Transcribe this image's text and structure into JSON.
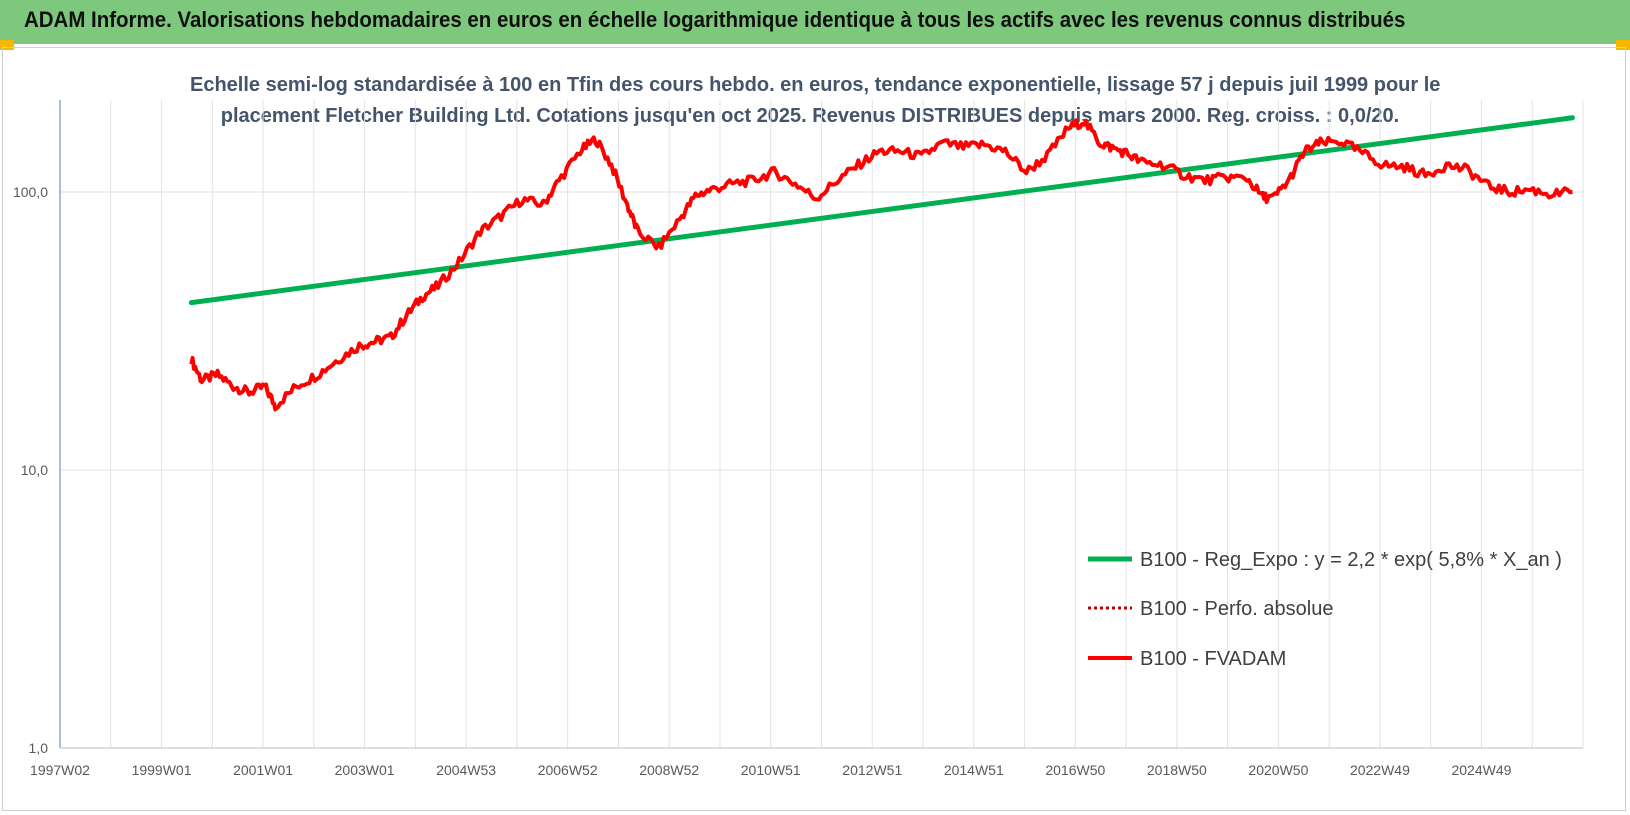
{
  "header": {
    "title": "ADAM Informe. Valorisations hebdomadaires en euros en échelle logarithmique identique à tous les actifs avec les revenus connus distribués"
  },
  "colors": {
    "header_bg": "#7dc87d",
    "corner_accent": "#f5b800",
    "trend": "#00b050",
    "fvadam": "#ff0000",
    "perfo": "#c00000",
    "subtitle": "#44546a"
  },
  "chart_data": {
    "type": "line",
    "title_lines": [
      "Echelle semi-log standardisée à 100 en Tfin des cours hebdo. en euros, tendance exponentielle, lissage 57 j depuis juil 1999 pour le",
      "placement Fletcher Building Ltd. Cotations jusqu'en oct 2025. Revenus DISTRIBUES depuis mars 2000. Reg. croiss. : 0,0/20."
    ],
    "y_scale": "log",
    "ylim": [
      1,
      200
    ],
    "y_ticks": [
      "1,0",
      "10,0",
      "100,0"
    ],
    "x_tick_labels": [
      "1997W02",
      "1999W01",
      "2001W01",
      "2003W01",
      "2004W53",
      "2006W52",
      "2008W52",
      "2010W51",
      "2012W51",
      "2014W51",
      "2016W50",
      "2018W50",
      "2020W50",
      "2022W49",
      "2024W49"
    ],
    "x_range_years": [
      1997.0,
      2026.0
    ],
    "grid": "vertical",
    "legend_position": "bottom-right",
    "series": [
      {
        "name": "B100 - Reg_Expo : y = 2,2 * exp( 5,8% *  X_an )",
        "style": "solid",
        "color": "#00b050",
        "x": [
          1999.5,
          2025.8
        ],
        "y": [
          40,
          185
        ]
      },
      {
        "name": "B100 - Perfo. absolue",
        "style": "dotted",
        "color": "#c00000",
        "x": [],
        "y": []
      },
      {
        "name": "B100 - FVADAM",
        "style": "solid",
        "color": "#ff0000",
        "x": [
          1999.5,
          1999.7,
          2000.0,
          2000.3,
          2000.6,
          2000.9,
          2001.1,
          2001.5,
          2001.9,
          2002.3,
          2002.7,
          2003.0,
          2003.3,
          2003.6,
          2003.9,
          2004.2,
          2004.6,
          2005.0,
          2005.4,
          2005.8,
          2006.2,
          2006.5,
          2006.9,
          2007.2,
          2007.5,
          2007.8,
          2008.0,
          2008.4,
          2008.8,
          2009.1,
          2009.4,
          2009.8,
          2010.2,
          2010.6,
          2011.0,
          2011.4,
          2011.8,
          2012.2,
          2012.6,
          2013.0,
          2013.4,
          2013.8,
          2014.2,
          2014.6,
          2015.0,
          2015.4,
          2015.8,
          2016.2,
          2016.5,
          2016.8,
          2017.0,
          2017.3,
          2017.6,
          2018.0,
          2018.4,
          2018.8,
          2019.2,
          2019.6,
          2019.9,
          2020.1,
          2020.4,
          2020.7,
          2021.0,
          2021.4,
          2021.8,
          2022.2,
          2022.6,
          2023.0,
          2023.4,
          2023.8,
          2024.2,
          2024.6,
          2025.0,
          2025.4,
          2025.8
        ],
        "y": [
          25,
          21,
          22,
          20,
          19,
          20,
          17,
          20,
          22,
          25,
          28,
          29,
          30,
          36,
          42,
          46,
          56,
          72,
          82,
          94,
          90,
          110,
          140,
          155,
          125,
          90,
          72,
          63,
          80,
          97,
          102,
          107,
          110,
          118,
          107,
          95,
          110,
          125,
          140,
          140,
          134,
          150,
          145,
          148,
          140,
          118,
          135,
          170,
          180,
          150,
          145,
          138,
          128,
          125,
          115,
          110,
          113,
          112,
          96,
          95,
          110,
          140,
          150,
          152,
          138,
          125,
          123,
          115,
          125,
          120,
          105,
          100,
          102,
          98,
          100
        ]
      }
    ]
  }
}
